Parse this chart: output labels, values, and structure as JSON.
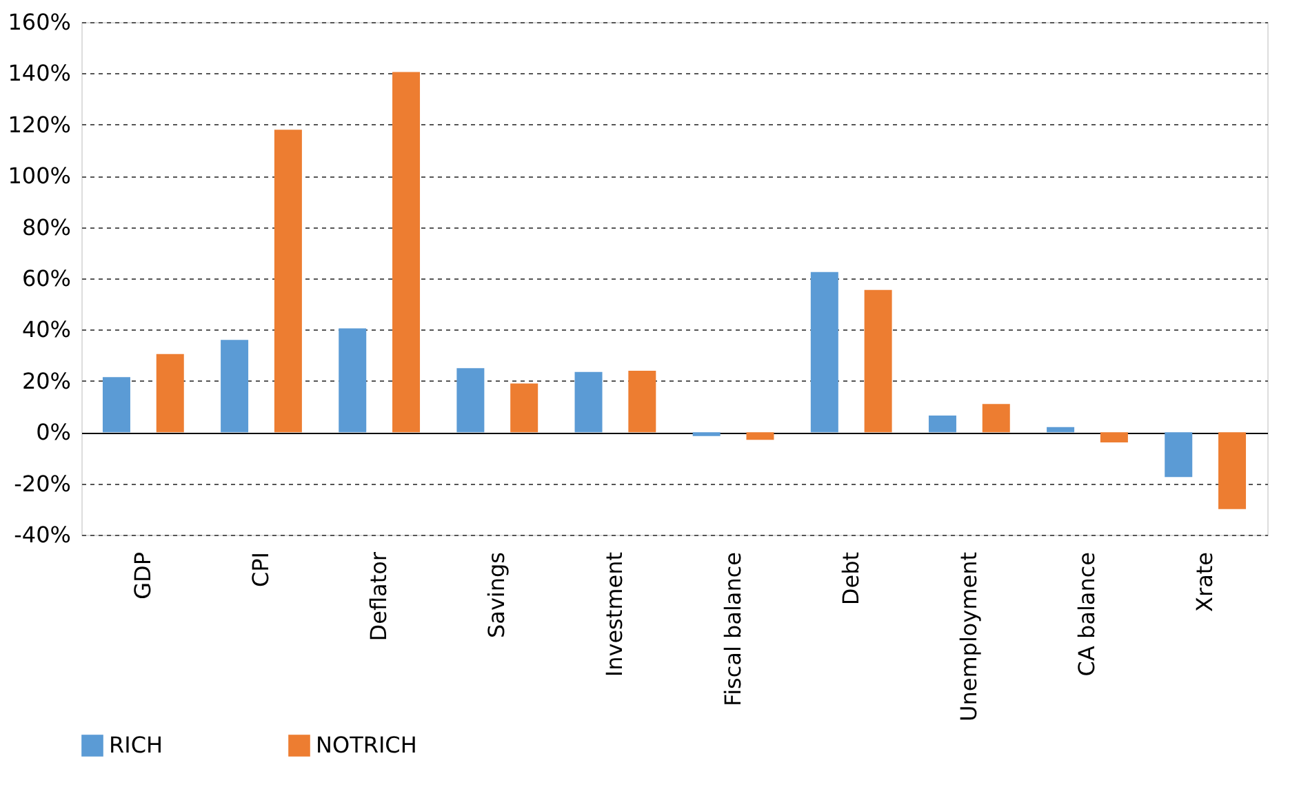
{
  "chart_data": {
    "type": "bar",
    "categories": [
      "GDP",
      "CPI",
      "Deflator",
      "Savings",
      "Investment",
      "Fiscal balance",
      "Debt",
      "Unemployment",
      "CA balance",
      "Xrate"
    ],
    "series": [
      {
        "name": "RICH",
        "color": "#5b9bd5",
        "values": [
          21.5,
          36,
          40.5,
          25,
          23.5,
          -1.5,
          62.5,
          6.5,
          2,
          -17.5
        ]
      },
      {
        "name": "NOTRICH",
        "color": "#ed7d31",
        "values": [
          30.5,
          118,
          140.5,
          19,
          24,
          -3,
          55.5,
          11,
          -4,
          -30
        ]
      }
    ],
    "ylim": [
      -40,
      160
    ],
    "yticks": [
      {
        "value": -40,
        "label": "-40%"
      },
      {
        "value": -20,
        "label": "-20%"
      },
      {
        "value": 0,
        "label": "0%"
      },
      {
        "value": 20,
        "label": "20%"
      },
      {
        "value": 40,
        "label": "40%"
      },
      {
        "value": 60,
        "label": "60%"
      },
      {
        "value": 80,
        "label": "80%"
      },
      {
        "value": 100,
        "label": "100%"
      },
      {
        "value": 120,
        "label": "120%"
      },
      {
        "value": 140,
        "label": "140%"
      },
      {
        "value": 160,
        "label": "160%"
      }
    ],
    "grid": "y",
    "legend": "bottom"
  }
}
